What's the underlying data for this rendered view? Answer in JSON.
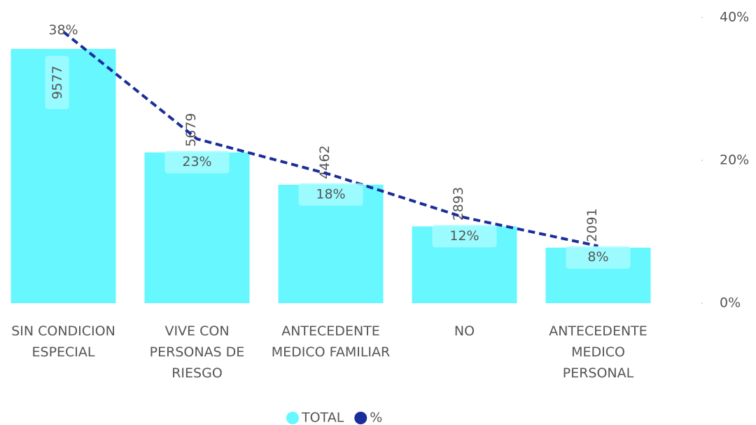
{
  "chart_data": {
    "type": "bar_line",
    "categories": [
      "SIN CONDICION ESPECIAL",
      "VIVE CON PERSONAS DE RIESGO",
      "ANTECEDENTE MEDICO FAMILIAR",
      "NO",
      "ANTECEDENTE MEDICO PERSONAL"
    ],
    "ylim": [
      0,
      10760
    ],
    "y2lim": [
      0,
      40
    ],
    "y2ticks": [
      {
        "value": 0,
        "label": "0%"
      },
      {
        "value": 20,
        "label": "20%"
      },
      {
        "value": 40,
        "label": "40%"
      }
    ],
    "series": [
      {
        "name": "TOTAL",
        "color": "#66f7ff",
        "type": "bar",
        "values": [
          9577,
          5679,
          4462,
          2893,
          2091
        ]
      },
      {
        "name": "%",
        "color": "#1a2d9a",
        "type": "line",
        "axis": "y2",
        "values": [
          38,
          23,
          18,
          12,
          8
        ],
        "value_labels": [
          "38%",
          "23%",
          "18%",
          "12%",
          "8%"
        ]
      }
    ],
    "legend": "bottom"
  }
}
